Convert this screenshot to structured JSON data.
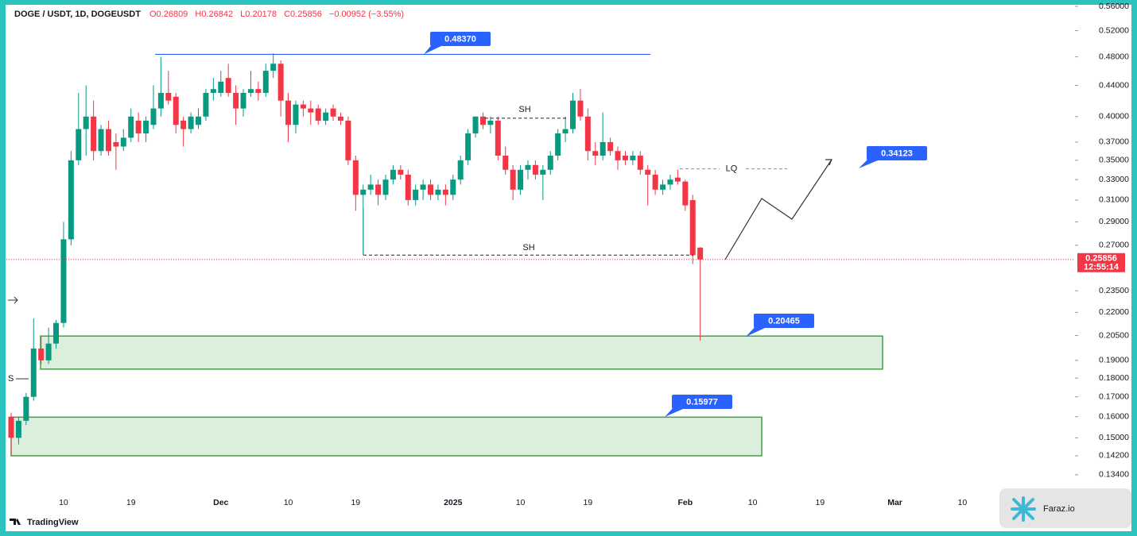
{
  "chart_data": {
    "type": "candlestick",
    "header": [
      "DOGE / USDT, 1D, DOGEUSDT",
      "O0.26809",
      "H0.26842",
      "L0.20178",
      "C0.25856",
      "−0.00952 (−3.55%)"
    ],
    "log_scale": true,
    "up_color": "#089981",
    "down_color": "#f23645",
    "categories": [
      null,
      null,
      null,
      null,
      null,
      null,
      null,
      "10",
      null,
      null,
      null,
      null,
      null,
      null,
      null,
      null,
      "19",
      null,
      null,
      null,
      null,
      null,
      null,
      null,
      null,
      null,
      null,
      null,
      "Dec",
      null,
      null,
      null,
      null,
      null,
      null,
      null,
      null,
      "10",
      null,
      null,
      null,
      null,
      null,
      null,
      null,
      null,
      "19",
      null,
      null,
      null,
      null,
      null,
      null,
      null,
      null,
      null,
      null,
      null,
      null,
      "2025",
      null,
      null,
      null,
      null,
      null,
      null,
      null,
      null,
      "10",
      null,
      null,
      null,
      null,
      null,
      null,
      null,
      null,
      "19",
      null,
      null,
      null,
      null,
      null,
      null,
      null,
      null,
      null,
      null,
      null,
      null,
      "Feb",
      null,
      null,
      null,
      null,
      null,
      null,
      null,
      null,
      "10",
      null,
      null,
      null,
      null,
      null,
      null,
      null,
      null,
      "19",
      null,
      null,
      null,
      null,
      null,
      null,
      null,
      null,
      null,
      "Mar",
      null,
      null,
      null,
      null,
      null,
      null,
      null,
      null,
      "10",
      null,
      null,
      null,
      null,
      null,
      null,
      null,
      null,
      null,
      null,
      null,
      null,
      null,
      null
    ],
    "ohlc": {
      "open": [
        0.16,
        0.15,
        0.158,
        0.17,
        0.197,
        0.19,
        0.2,
        0.213,
        0.275,
        0.35,
        0.385,
        0.4,
        0.36,
        0.385,
        0.37,
        0.365,
        0.375,
        0.395,
        0.38,
        0.39,
        0.41,
        0.43,
        0.425,
        0.395,
        0.385,
        0.39,
        0.4,
        0.43,
        0.43,
        0.45,
        0.43,
        0.41,
        0.43,
        0.435,
        0.43,
        0.46,
        0.47,
        0.42,
        0.39,
        0.415,
        0.41,
        0.41,
        0.395,
        0.41,
        0.4,
        0.395,
        0.35,
        0.315,
        0.32,
        0.325,
        0.315,
        0.33,
        0.34,
        0.335,
        0.31,
        0.32,
        0.325,
        0.315,
        0.32,
        0.315,
        0.33,
        0.35,
        0.38,
        0.4,
        0.39,
        0.395,
        0.355,
        0.34,
        0.32,
        0.34,
        0.345,
        0.335,
        0.34,
        0.355,
        0.38,
        0.385,
        0.42,
        0.4,
        0.36,
        0.355,
        0.37,
        0.36,
        0.355,
        0.35,
        0.355,
        0.34,
        0.335,
        0.32,
        0.325,
        0.332,
        0.328,
        0.31,
        0.26809,
        null,
        null,
        null,
        null,
        null,
        null,
        null,
        null,
        null,
        null,
        null,
        null,
        null,
        null,
        null,
        null,
        null,
        null,
        null,
        null,
        null,
        null,
        null,
        null,
        null,
        null,
        null,
        null,
        null,
        null,
        null,
        null,
        null,
        null,
        null,
        null,
        null,
        null,
        null,
        null,
        null,
        null,
        null,
        null,
        null,
        null,
        null,
        null,
        null
      ],
      "high": [
        0.162,
        0.16,
        0.172,
        0.216,
        0.205,
        0.21,
        0.215,
        0.29,
        0.36,
        0.43,
        0.44,
        0.42,
        0.39,
        0.395,
        0.38,
        0.385,
        0.41,
        0.405,
        0.4,
        0.44,
        0.48,
        0.46,
        0.43,
        0.4,
        0.405,
        0.41,
        0.435,
        0.45,
        0.46,
        0.47,
        0.44,
        0.435,
        0.46,
        0.445,
        0.47,
        0.485,
        0.475,
        0.43,
        0.42,
        0.42,
        0.42,
        0.415,
        0.41,
        0.415,
        0.405,
        0.4,
        0.355,
        0.325,
        0.335,
        0.33,
        0.335,
        0.345,
        0.345,
        0.34,
        0.325,
        0.33,
        0.33,
        0.325,
        0.325,
        0.335,
        0.355,
        0.385,
        0.4,
        0.405,
        0.4,
        0.4,
        0.365,
        0.345,
        0.345,
        0.35,
        0.35,
        0.345,
        0.36,
        0.385,
        0.4,
        0.43,
        0.435,
        0.41,
        0.37,
        0.405,
        0.375,
        0.365,
        0.36,
        0.36,
        0.36,
        0.345,
        0.34,
        0.33,
        0.335,
        0.34,
        0.33,
        0.315,
        0.26842,
        null,
        null,
        null,
        null,
        null,
        null,
        null,
        null,
        null,
        null,
        null,
        null,
        null,
        null,
        null,
        null,
        null,
        null,
        null,
        null,
        null,
        null,
        null,
        null,
        null,
        null,
        null,
        null,
        null,
        null,
        null,
        null,
        null,
        null,
        null,
        null,
        null,
        null,
        null,
        null,
        null,
        null,
        null,
        null,
        null,
        null,
        null,
        null,
        null
      ],
      "low": [
        0.142,
        0.147,
        0.156,
        0.168,
        0.188,
        0.188,
        0.197,
        0.21,
        0.27,
        0.345,
        0.355,
        0.35,
        0.355,
        0.355,
        0.34,
        0.36,
        0.37,
        0.37,
        0.37,
        0.385,
        0.4,
        0.415,
        0.38,
        0.365,
        0.38,
        0.385,
        0.395,
        0.42,
        0.425,
        0.425,
        0.39,
        0.4,
        0.425,
        0.42,
        0.425,
        0.45,
        0.4,
        0.37,
        0.38,
        0.4,
        0.39,
        0.39,
        0.39,
        0.395,
        0.39,
        0.345,
        0.3,
        0.262,
        0.315,
        0.305,
        0.31,
        0.325,
        0.33,
        0.305,
        0.305,
        0.31,
        0.31,
        0.31,
        0.305,
        0.31,
        0.325,
        0.345,
        0.375,
        0.385,
        0.38,
        0.35,
        0.335,
        0.31,
        0.315,
        0.33,
        0.33,
        0.31,
        0.335,
        0.35,
        0.37,
        0.38,
        0.395,
        0.35,
        0.345,
        0.35,
        0.355,
        0.34,
        0.345,
        0.345,
        0.335,
        0.305,
        0.315,
        0.315,
        0.32,
        0.325,
        0.3,
        0.255,
        0.20178,
        null,
        null,
        null,
        null,
        null,
        null,
        null,
        null,
        null,
        null,
        null,
        null,
        null,
        null,
        null,
        null,
        null,
        null,
        null,
        null,
        null,
        null,
        null,
        null,
        null,
        null,
        null,
        null,
        null,
        null,
        null,
        null,
        null,
        null,
        null,
        null,
        null,
        null,
        null,
        null,
        null,
        null,
        null,
        null,
        null,
        null,
        null,
        null,
        null
      ],
      "close": [
        0.15,
        0.158,
        0.17,
        0.197,
        0.19,
        0.2,
        0.213,
        0.275,
        0.35,
        0.385,
        0.4,
        0.36,
        0.385,
        0.36,
        0.365,
        0.375,
        0.4,
        0.38,
        0.395,
        0.41,
        0.43,
        0.42,
        0.39,
        0.385,
        0.4,
        0.4,
        0.43,
        0.435,
        0.445,
        0.43,
        0.41,
        0.43,
        0.435,
        0.43,
        0.46,
        0.47,
        0.42,
        0.39,
        0.415,
        0.41,
        0.405,
        0.395,
        0.405,
        0.4,
        0.395,
        0.35,
        0.315,
        0.32,
        0.325,
        0.315,
        0.33,
        0.34,
        0.335,
        0.31,
        0.32,
        0.325,
        0.315,
        0.32,
        0.315,
        0.33,
        0.35,
        0.38,
        0.4,
        0.39,
        0.395,
        0.355,
        0.34,
        0.32,
        0.34,
        0.345,
        0.335,
        0.34,
        0.355,
        0.38,
        0.385,
        0.42,
        0.4,
        0.36,
        0.355,
        0.37,
        0.36,
        0.35,
        0.35,
        0.355,
        0.34,
        0.335,
        0.32,
        0.325,
        0.33,
        0.328,
        0.305,
        0.262,
        0.25856,
        null,
        null,
        null,
        null,
        null,
        null,
        null,
        null,
        null,
        null,
        null,
        null,
        null,
        null,
        null,
        null,
        null,
        null,
        null,
        null,
        null,
        null,
        null,
        null,
        null,
        null,
        null,
        null,
        null,
        null,
        null,
        null,
        null,
        null,
        null,
        null,
        null,
        null,
        null,
        null,
        null,
        null,
        null,
        null,
        null,
        null,
        null,
        null,
        null
      ]
    },
    "ylim": [
      0.127,
      0.56
    ],
    "yticks": [
      {
        "value": 0.56,
        "label": "0.56000"
      },
      {
        "value": 0.52,
        "label": "0.52000"
      },
      {
        "value": 0.48,
        "label": "0.48000"
      },
      {
        "value": 0.44,
        "label": "0.44000"
      },
      {
        "value": 0.4,
        "label": "0.40000"
      },
      {
        "value": 0.37,
        "label": "0.37000"
      },
      {
        "value": 0.35,
        "label": "0.35000"
      },
      {
        "value": 0.33,
        "label": "0.33000"
      },
      {
        "value": 0.31,
        "label": "0.31000"
      },
      {
        "value": 0.29,
        "label": "0.29000"
      },
      {
        "value": 0.27,
        "label": "0.27000"
      },
      {
        "value": 0.235,
        "label": "0.23500"
      },
      {
        "value": 0.22,
        "label": "0.22000"
      },
      {
        "value": 0.205,
        "label": "0.20500"
      },
      {
        "value": 0.19,
        "label": "0.19000"
      },
      {
        "value": 0.18,
        "label": "0.18000"
      },
      {
        "value": 0.17,
        "label": "0.17000"
      },
      {
        "value": 0.16,
        "label": "0.16000"
      },
      {
        "value": 0.15,
        "label": "0.15000"
      },
      {
        "value": 0.142,
        "label": "0.14200"
      },
      {
        "value": 0.134,
        "label": "0.13400"
      }
    ],
    "last_price": {
      "value": 0.25856,
      "label": "0.25856",
      "countdown": "12:55:14"
    },
    "level": {
      "value": 0.4837,
      "label": "0.48370"
    },
    "targets": [
      {
        "value": 0.34123,
        "label": "0.34123"
      },
      {
        "value": 0.20465,
        "label": "0.20465"
      },
      {
        "value": 0.15977,
        "label": "0.15977"
      }
    ],
    "zones": [
      {
        "top": 0.20465,
        "bottom": 0.185
      },
      {
        "top": 0.15977,
        "bottom": 0.142
      }
    ],
    "marks": [
      {
        "label": "SH",
        "value": 0.398
      },
      {
        "label": "SH",
        "value": 0.262
      },
      {
        "label": "LQ",
        "value": 0.341
      }
    ],
    "side_label": "S",
    "brand": "TradingView",
    "watermark": "Faraz.io"
  }
}
